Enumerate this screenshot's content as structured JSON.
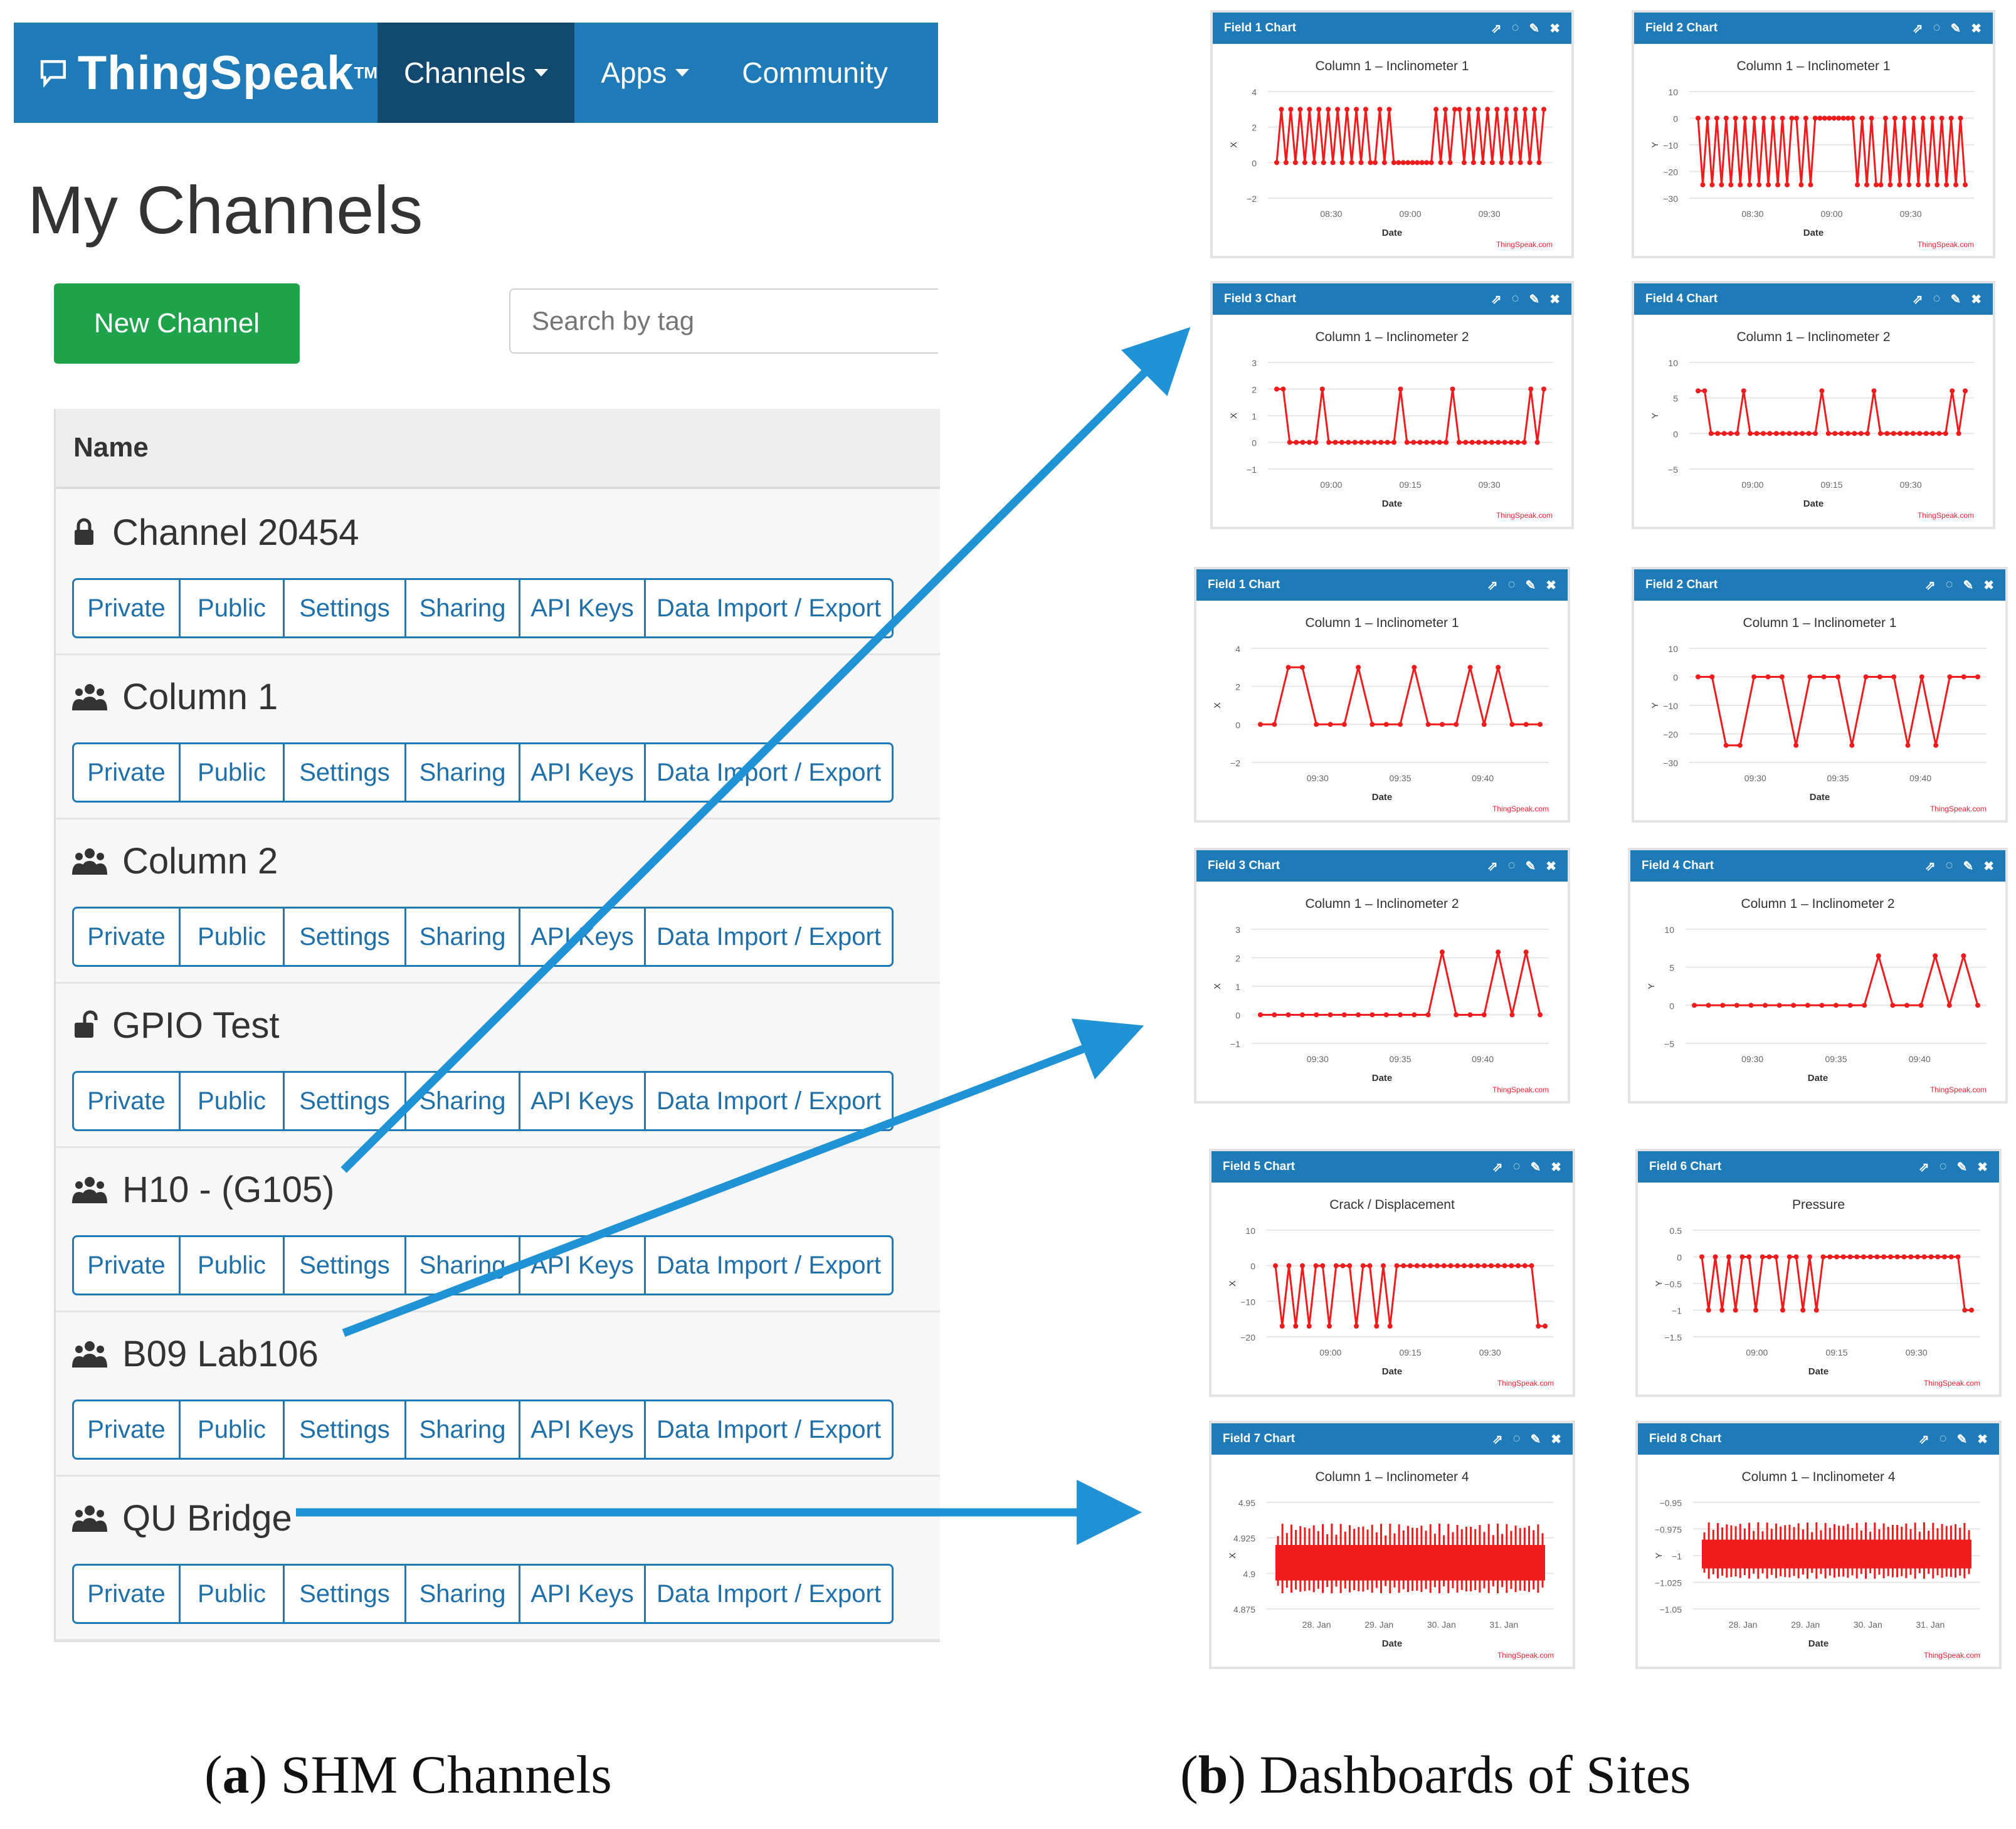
{
  "navbar": {
    "logo": "ThingSpeak",
    "logo_tm": "TM",
    "items": [
      {
        "label": "Channels",
        "dropdown": true,
        "active": true
      },
      {
        "label": "Apps",
        "dropdown": true,
        "active": false
      },
      {
        "label": "Community",
        "dropdown": false,
        "active": false
      }
    ]
  },
  "page_title": "My Channels",
  "new_channel_label": "New Channel",
  "search_placeholder": "Search by tag",
  "table_header": "Name",
  "channel_buttons": [
    "Private",
    "Public",
    "Settings",
    "Sharing",
    "API Keys",
    "Data Import / Export"
  ],
  "channels": [
    {
      "name": "Channel 20454",
      "icon": "lock-icon"
    },
    {
      "name": "Column 1",
      "icon": "group-icon"
    },
    {
      "name": "Column 2",
      "icon": "group-icon"
    },
    {
      "name": "GPIO Test",
      "icon": "unlock-icon"
    },
    {
      "name": "H10 - (G105)",
      "icon": "group-icon"
    },
    {
      "name": "B09 Lab106",
      "icon": "group-icon"
    },
    {
      "name": "QU Bridge",
      "icon": "group-icon"
    }
  ],
  "captions": {
    "a_label": "a",
    "a_text": "SHM Channels",
    "b_label": "b",
    "b_text": "Dashboards of Sites"
  },
  "colors": {
    "nav": "#1f7ab8",
    "nav_active": "#12496f",
    "new_channel": "#1fa34a",
    "arrow": "#1f93d4",
    "series": "#ee1c1c"
  },
  "watermark": "ThingSpeak.com",
  "chart_data": [
    {
      "type": "line",
      "panel_title": "Field 1 Chart",
      "title": "Column 1 – Inclinometer 1",
      "xlabel": "Date",
      "ylabel": "X",
      "yticks": [
        "4",
        "2",
        "0",
        "−2"
      ],
      "ylim": [
        -2,
        4
      ],
      "xticks": [
        "08:30",
        "09:00",
        "09:30"
      ],
      "values": [
        0,
        3,
        0,
        3,
        0,
        3,
        0,
        3,
        0,
        3,
        0,
        3,
        0,
        3,
        0,
        3,
        0,
        3,
        0,
        3,
        0,
        0,
        3,
        0,
        3,
        0,
        0,
        0,
        0,
        0,
        0,
        0,
        0,
        0,
        3,
        0,
        3,
        0,
        3,
        3,
        0,
        3,
        0,
        3,
        0,
        3,
        0,
        3,
        0,
        3,
        0,
        3,
        0,
        3,
        0,
        3,
        0,
        3
      ]
    },
    {
      "type": "line",
      "panel_title": "Field 2 Chart",
      "title": "Column 1 – Inclinometer 1",
      "xlabel": "Date",
      "ylabel": "Y",
      "yticks": [
        "10",
        "0",
        "−10",
        "−20",
        "−30"
      ],
      "ylim": [
        -30,
        10
      ],
      "xticks": [
        "08:30",
        "09:00",
        "09:30"
      ],
      "values": [
        0,
        -25,
        0,
        -25,
        0,
        -25,
        0,
        -25,
        0,
        -25,
        0,
        -25,
        0,
        -25,
        0,
        -25,
        0,
        -25,
        0,
        -25,
        0,
        0,
        -25,
        0,
        -25,
        0,
        0,
        0,
        0,
        0,
        0,
        0,
        0,
        0,
        -25,
        0,
        -25,
        0,
        -25,
        -25,
        0,
        -25,
        0,
        -25,
        0,
        -25,
        0,
        -25,
        0,
        -25,
        0,
        -25,
        0,
        -25,
        0,
        -25,
        0,
        -25
      ]
    },
    {
      "type": "line",
      "panel_title": "Field 3 Chart",
      "title": "Column 1 – Inclinometer 2",
      "xlabel": "Date",
      "ylabel": "X",
      "yticks": [
        "3",
        "2",
        "1",
        "0",
        "−1"
      ],
      "ylim": [
        -1,
        3
      ],
      "xticks": [
        "09:00",
        "09:15",
        "09:30"
      ],
      "values": [
        2,
        2,
        0,
        0,
        0,
        0,
        0,
        2,
        0,
        0,
        0,
        0,
        0,
        0,
        0,
        0,
        0,
        0,
        0,
        2,
        0,
        0,
        0,
        0,
        0,
        0,
        0,
        2,
        0,
        0,
        0,
        0,
        0,
        0,
        0,
        0,
        0,
        0,
        0,
        2,
        0,
        2
      ]
    },
    {
      "type": "line",
      "panel_title": "Field 4 Chart",
      "title": "Column 1 – Inclinometer 2",
      "xlabel": "Date",
      "ylabel": "Y",
      "yticks": [
        "10",
        "5",
        "0",
        "−5"
      ],
      "ylim": [
        -5,
        10
      ],
      "xticks": [
        "09:00",
        "09:15",
        "09:30"
      ],
      "values": [
        6,
        6,
        0,
        0,
        0,
        0,
        0,
        6,
        0,
        0,
        0,
        0,
        0,
        0,
        0,
        0,
        0,
        0,
        0,
        6,
        0,
        0,
        0,
        0,
        0,
        0,
        0,
        6,
        0,
        0,
        0,
        0,
        0,
        0,
        0,
        0,
        0,
        0,
        0,
        6,
        0,
        6
      ]
    },
    {
      "type": "line",
      "panel_title": "Field 1 Chart",
      "title": "Column 1 – Inclinometer 1",
      "xlabel": "Date",
      "ylabel": "X",
      "yticks": [
        "4",
        "2",
        "0",
        "−2"
      ],
      "ylim": [
        -2,
        4
      ],
      "xticks": [
        "09:30",
        "09:35",
        "09:40"
      ],
      "values": [
        0,
        0,
        3,
        3,
        0,
        0,
        0,
        3,
        0,
        0,
        0,
        3,
        0,
        0,
        0,
        3,
        0,
        3,
        0,
        0,
        0
      ]
    },
    {
      "type": "line",
      "panel_title": "Field 2 Chart",
      "title": "Column 1 – Inclinometer 1",
      "xlabel": "Date",
      "ylabel": "Y",
      "yticks": [
        "10",
        "0",
        "−10",
        "−20",
        "−30"
      ],
      "ylim": [
        -30,
        10
      ],
      "xticks": [
        "09:30",
        "09:35",
        "09:40"
      ],
      "values": [
        0,
        0,
        -24,
        -24,
        0,
        0,
        0,
        -24,
        0,
        0,
        0,
        -24,
        0,
        0,
        0,
        -24,
        0,
        -24,
        0,
        0,
        0
      ]
    },
    {
      "type": "line",
      "panel_title": "Field 3 Chart",
      "title": "Column 1 – Inclinometer 2",
      "xlabel": "Date",
      "ylabel": "X",
      "yticks": [
        "3",
        "2",
        "1",
        "0",
        "−1"
      ],
      "ylim": [
        -1,
        3
      ],
      "xticks": [
        "09:30",
        "09:35",
        "09:40"
      ],
      "values": [
        0,
        0,
        0,
        0,
        0,
        0,
        0,
        0,
        0,
        0,
        0,
        0,
        0,
        2.2,
        0,
        0,
        0,
        2.2,
        0,
        2.2,
        0
      ]
    },
    {
      "type": "line",
      "panel_title": "Field 4 Chart",
      "title": "Column 1 – Inclinometer 2",
      "xlabel": "Date",
      "ylabel": "Y",
      "yticks": [
        "10",
        "5",
        "0",
        "−5"
      ],
      "ylim": [
        -5,
        10
      ],
      "xticks": [
        "09:30",
        "09:35",
        "09:40"
      ],
      "values": [
        0,
        0,
        0,
        0,
        0,
        0,
        0,
        0,
        0,
        0,
        0,
        0,
        0,
        6.5,
        0,
        0,
        0,
        6.5,
        0,
        6.5,
        0
      ]
    },
    {
      "type": "line",
      "panel_title": "Field 5 Chart",
      "title": "Crack / Displacement",
      "xlabel": "Date",
      "ylabel": "X",
      "yticks": [
        "10",
        "0",
        "−10",
        "−20"
      ],
      "ylim": [
        -20,
        10
      ],
      "xticks": [
        "09:00",
        "09:15",
        "09:30"
      ],
      "values": [
        0,
        -17,
        0,
        -17,
        0,
        -17,
        0,
        0,
        -17,
        0,
        0,
        0,
        -17,
        0,
        0,
        -17,
        0,
        -17,
        0,
        0,
        0,
        0,
        0,
        0,
        0,
        0,
        0,
        0,
        0,
        0,
        0,
        0,
        0,
        0,
        0,
        0,
        0,
        0,
        0,
        -17,
        -17
      ]
    },
    {
      "type": "line",
      "panel_title": "Field 6 Chart",
      "title": "Pressure",
      "xlabel": "Date",
      "ylabel": "Y",
      "yticks": [
        "0.5",
        "0",
        "−0.5",
        "−1",
        "−1.5"
      ],
      "ylim": [
        -1.5,
        0.5
      ],
      "xticks": [
        "09:00",
        "09:15",
        "09:30"
      ],
      "values": [
        0,
        -1,
        0,
        -1,
        0,
        -1,
        0,
        0,
        -1,
        0,
        0,
        0,
        -1,
        0,
        0,
        -1,
        0,
        -1,
        0,
        0,
        0,
        0,
        0,
        0,
        0,
        0,
        0,
        0,
        0,
        0,
        0,
        0,
        0,
        0,
        0,
        0,
        0,
        0,
        0,
        -1,
        -1
      ]
    },
    {
      "type": "line",
      "panel_title": "Field 7 Chart",
      "title": "Column 1 – Inclinometer 4",
      "xlabel": "Date",
      "ylabel": "X",
      "yticks": [
        "4.95",
        "4.925",
        "4.9",
        "4.875"
      ],
      "ylim": [
        4.875,
        4.95
      ],
      "xticks": [
        "28. Jan",
        "29. Jan",
        "30. Jan",
        "31. Jan"
      ],
      "dense_band": [
        4.895,
        4.92
      ],
      "values": []
    },
    {
      "type": "line",
      "panel_title": "Field 8 Chart",
      "title": "Column 1 – Inclinometer 4",
      "xlabel": "Date",
      "ylabel": "Y",
      "yticks": [
        "−0.95",
        "−0.975",
        "−1",
        "−1.025",
        "−1.05"
      ],
      "ylim": [
        -1.05,
        -0.95
      ],
      "xticks": [
        "28. Jan",
        "29. Jan",
        "30. Jan",
        "31. Jan"
      ],
      "dense_band": [
        -1.012,
        -0.985
      ],
      "values": []
    }
  ]
}
